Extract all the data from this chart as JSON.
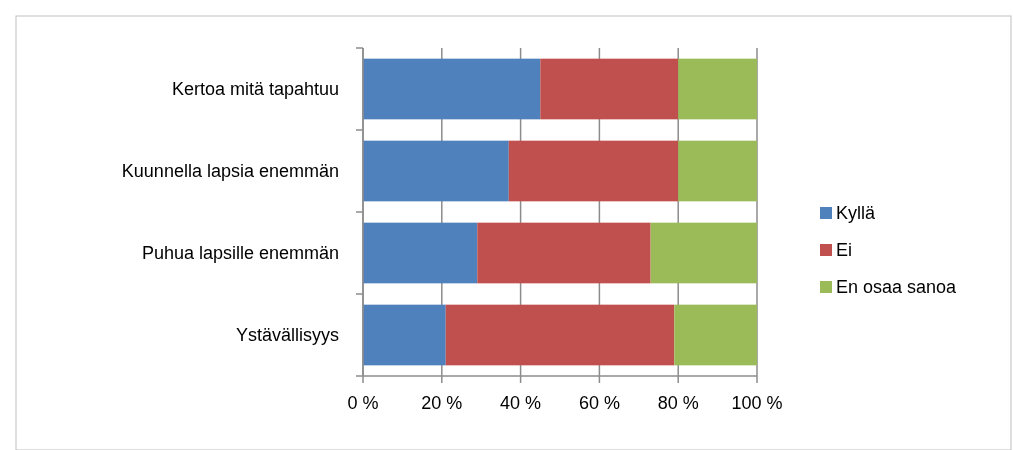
{
  "chart_data": {
    "type": "bar",
    "orientation": "horizontal",
    "stacked": true,
    "categories": [
      "Kertoa mitä tapahtuu",
      "Kuunnella lapsia enemmän",
      "Puhua lapsille enemmän",
      "Ystävällisyys"
    ],
    "series": [
      {
        "name": "Kyllä",
        "color": "#4f81bd",
        "values": [
          45,
          37,
          29,
          21
        ]
      },
      {
        "name": "Ei",
        "color": "#c0504d",
        "values": [
          35,
          43,
          44,
          58
        ]
      },
      {
        "name": "En osaa sanoa",
        "color": "#9bbb59",
        "values": [
          20,
          20,
          27,
          21
        ]
      }
    ],
    "xlim": [
      0,
      100
    ],
    "xticks": [
      {
        "value": 0,
        "label": "0 %"
      },
      {
        "value": 20,
        "label": "20 %"
      },
      {
        "value": 40,
        "label": "40 %"
      },
      {
        "value": 60,
        "label": "60 %"
      },
      {
        "value": 80,
        "label": "80 %"
      },
      {
        "value": 100,
        "label": "100 %"
      }
    ],
    "grid": "x",
    "legend": "right"
  }
}
